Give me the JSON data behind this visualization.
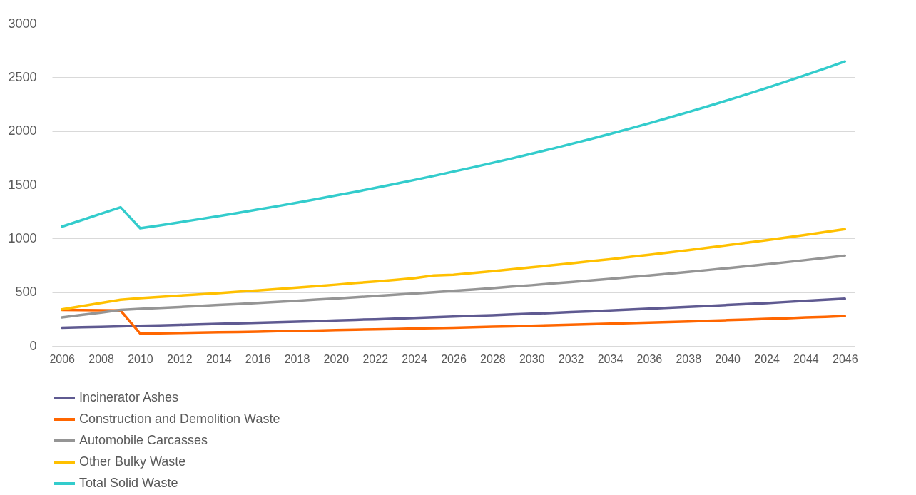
{
  "chart_data": {
    "type": "line",
    "categories": [
      "2006",
      null,
      "2008",
      null,
      "2010",
      null,
      "2012",
      null,
      "2014",
      null,
      "2016",
      null,
      "2018",
      null,
      "2020",
      null,
      "2022",
      null,
      "2024",
      null,
      "2026",
      null,
      "2028",
      null,
      "2030",
      null,
      "2032",
      null,
      "2034",
      null,
      "2036",
      null,
      "2038",
      null,
      "2040",
      null,
      "2024",
      null,
      "2044",
      null,
      "2046"
    ],
    "series": [
      {
        "name": "Incinerator Ashes",
        "color": "#5f5a91",
        "values": [
          170,
          174,
          178,
          182,
          187,
          191,
          196,
          201,
          205,
          210,
          215,
          221,
          226,
          231,
          237,
          243,
          248,
          254,
          260,
          267,
          273,
          280,
          286,
          293,
          300,
          307,
          315,
          322,
          330,
          338,
          346,
          355,
          363,
          372,
          381,
          390,
          399,
          409,
          419,
          429,
          439
        ]
      },
      {
        "name": "Construction and Demolition Waste",
        "color": "#ff6600",
        "values": [
          335,
          333,
          332,
          330,
          115,
          118,
          121,
          124,
          127,
          130,
          133,
          137,
          140,
          143,
          147,
          151,
          154,
          158,
          162,
          166,
          170,
          174,
          179,
          183,
          188,
          192,
          197,
          202,
          207,
          212,
          217,
          223,
          228,
          234,
          240,
          246,
          252,
          258,
          265,
          271,
          278
        ]
      },
      {
        "name": "Automobile Carcasses",
        "color": "#959595",
        "values": [
          265,
          288,
          311,
          335,
          345,
          354,
          362,
          371,
          381,
          390,
          400,
          410,
          420,
          431,
          442,
          453,
          464,
          476,
          488,
          500,
          512,
          525,
          538,
          552,
          565,
          580,
          594,
          609,
          624,
          640,
          656,
          672,
          689,
          706,
          724,
          742,
          760,
          779,
          799,
          819,
          840
        ]
      },
      {
        "name": "Other Bulky Waste",
        "color": "#ffc000",
        "values": [
          340,
          370,
          400,
          430,
          445,
          456,
          468,
          479,
          491,
          504,
          516,
          529,
          543,
          556,
          570,
          585,
          599,
          614,
          630,
          655,
          662,
          679,
          696,
          713,
          731,
          750,
          768,
          788,
          807,
          828,
          848,
          870,
          891,
          914,
          937,
          960,
          984,
          1009,
          1034,
          1060,
          1087
        ]
      },
      {
        "name": "Total Solid Waste",
        "color": "#33cccc",
        "values": [
          1110,
          1170,
          1230,
          1290,
          1095,
          1122,
          1150,
          1179,
          1208,
          1238,
          1269,
          1300,
          1333,
          1366,
          1400,
          1434,
          1470,
          1507,
          1544,
          1582,
          1622,
          1662,
          1703,
          1745,
          1789,
          1833,
          1879,
          1925,
          1973,
          2022,
          2072,
          2124,
          2176,
          2230,
          2286,
          2342,
          2400,
          2460,
          2521,
          2583,
          2647
        ]
      }
    ],
    "ylim": [
      0,
      3000
    ],
    "yticks": [
      0,
      500,
      1000,
      1500,
      2000,
      2500,
      3000
    ],
    "grid": "y",
    "legend": "bottom",
    "line_style": "solid",
    "marker": "none"
  }
}
